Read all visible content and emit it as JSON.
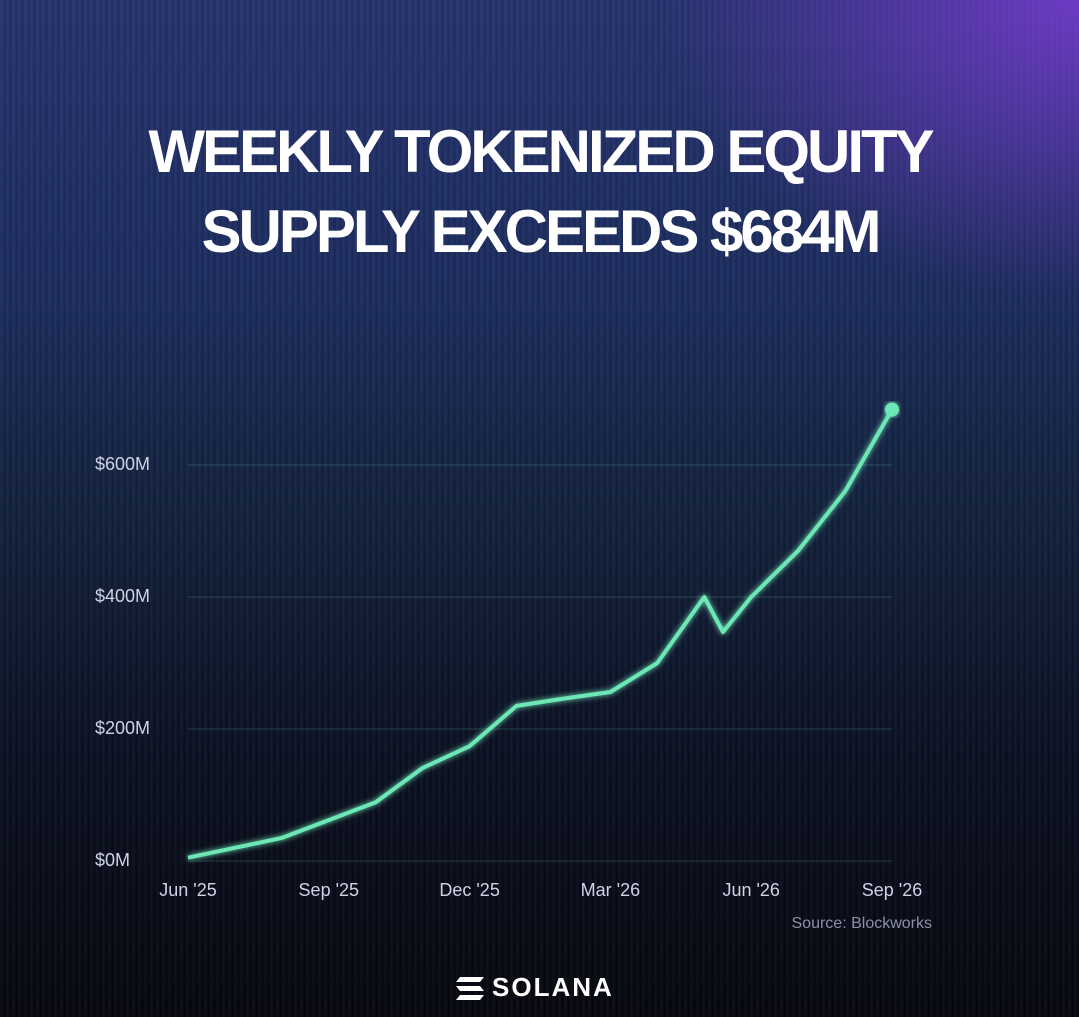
{
  "chart_data": {
    "type": "line",
    "title": "WEEKLY TOKENIZED EQUITY SUPPLY EXCEEDS $684M",
    "source": "Source: Blockworks",
    "brand": "SOLANA",
    "x": [
      0,
      2,
      3,
      4,
      5,
      6,
      7,
      8,
      9,
      10,
      11,
      11.4,
      12,
      13,
      14,
      15
    ],
    "values": [
      5,
      35,
      62,
      89,
      141,
      174,
      235,
      246,
      256,
      300,
      400,
      347,
      400,
      470,
      560,
      684
    ],
    "color": "#6ee7b7",
    "xlim": [
      0,
      15
    ],
    "xticks": [
      {
        "value": 0,
        "label": "Jun '25"
      },
      {
        "value": 3,
        "label": "Sep '25"
      },
      {
        "value": 6,
        "label": "Dec '25"
      },
      {
        "value": 9,
        "label": "Mar '26"
      },
      {
        "value": 12,
        "label": "Jun '26"
      },
      {
        "value": 15,
        "label": "Sep '26"
      }
    ],
    "ylim": [
      0,
      700
    ],
    "yticks": [
      {
        "value": 0,
        "label": "$0M"
      },
      {
        "value": 200,
        "label": "$200M"
      },
      {
        "value": 400,
        "label": "$400M"
      },
      {
        "value": 600,
        "label": "$600M"
      }
    ],
    "grid": true
  }
}
